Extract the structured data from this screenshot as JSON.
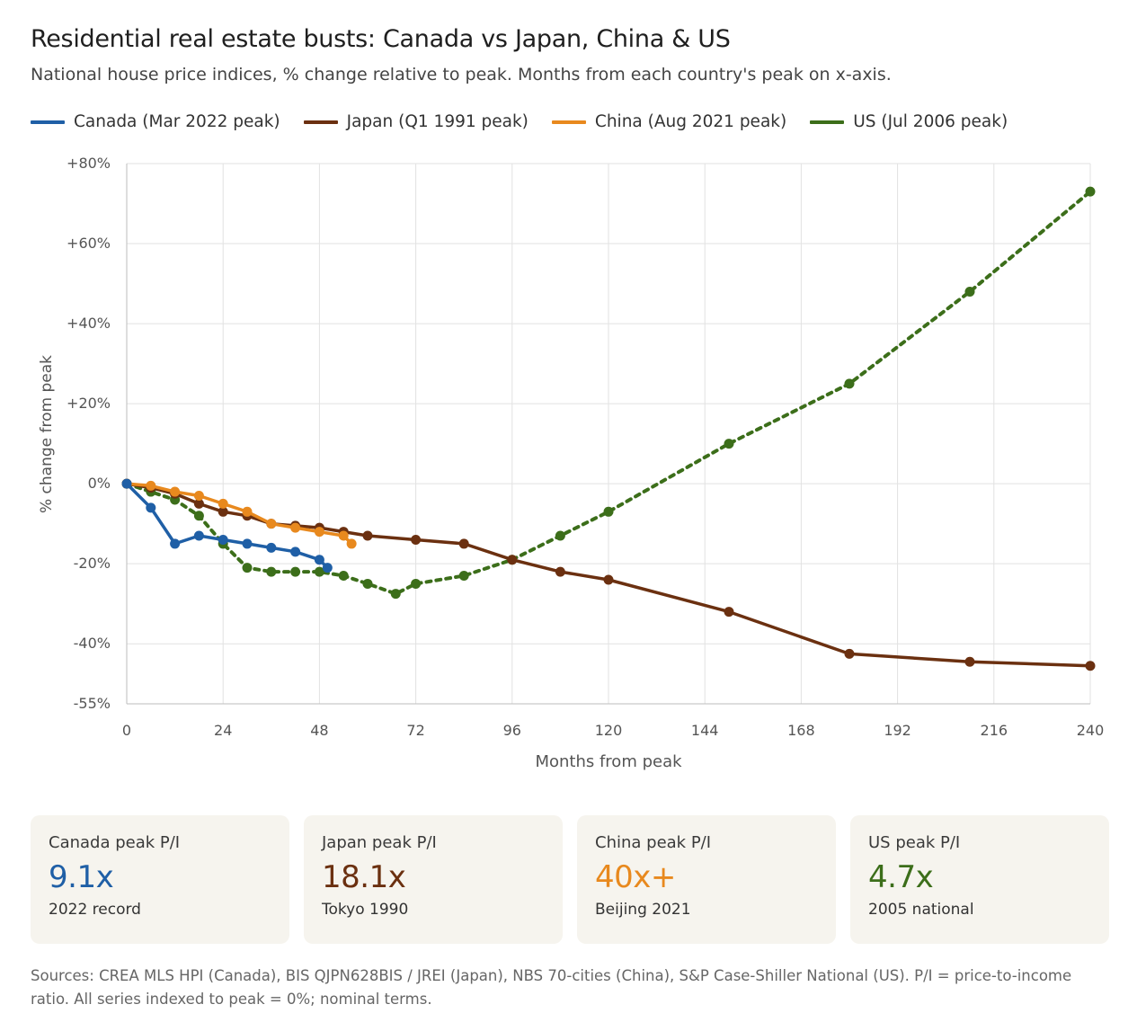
{
  "title": "Residential real estate busts: Canada vs Japan, China & US",
  "subtitle": "National house price indices, % change relative to peak. Months from each country's peak on x-axis.",
  "legend": [
    {
      "label": "Canada (Mar 2022 peak)",
      "color": "#1f5fa6"
    },
    {
      "label": "Japan (Q1 1991 peak)",
      "color": "#6b3010"
    },
    {
      "label": "China (Aug 2021 peak)",
      "color": "#e8891e"
    },
    {
      "label": "US (Jul 2006 peak)",
      "color": "#3c6e1a"
    }
  ],
  "chart_data": {
    "type": "line",
    "xlabel": "Months from peak",
    "ylabel": "% change from peak",
    "xlim": [
      0,
      240
    ],
    "ylim": [
      -55,
      80
    ],
    "xticks": [
      0,
      24,
      48,
      72,
      96,
      120,
      144,
      168,
      192,
      216,
      240
    ],
    "xtick_labels": [
      "0",
      "24",
      "48",
      "72",
      "96",
      "120",
      "144",
      "168",
      "192",
      "216",
      "240"
    ],
    "yticks": [
      80,
      60,
      40,
      20,
      0,
      -20,
      -40,
      -55
    ],
    "ytick_labels": [
      "+80%",
      "+60%",
      "+40%",
      "+20%",
      "0%",
      "-20%",
      "-40%",
      "-55%"
    ],
    "grid": true,
    "legend_position": "top-left",
    "series": [
      {
        "name": "Canada (Mar 2022 peak)",
        "color": "#1f5fa6",
        "dashed": false,
        "x": [
          0,
          6,
          12,
          18,
          24,
          30,
          36,
          42,
          48,
          50
        ],
        "y": [
          0,
          -6,
          -15,
          -13,
          -14,
          -15,
          -16,
          -17,
          -19,
          -21
        ]
      },
      {
        "name": "Japan (Q1 1991 peak)",
        "color": "#6b3010",
        "dashed": false,
        "x": [
          0,
          6,
          12,
          18,
          24,
          30,
          36,
          42,
          48,
          54,
          60,
          72,
          84,
          96,
          108,
          120,
          150,
          180,
          210,
          240
        ],
        "y": [
          0,
          -1,
          -2.5,
          -5,
          -7,
          -8,
          -10,
          -10.5,
          -11,
          -12,
          -13,
          -14,
          -15,
          -19,
          -22,
          -24,
          -32,
          -42.5,
          -44.5,
          -45.5
        ]
      },
      {
        "name": "China (Aug 2021 peak)",
        "color": "#e8891e",
        "dashed": false,
        "x": [
          0,
          6,
          12,
          18,
          24,
          30,
          36,
          42,
          48,
          54,
          56
        ],
        "y": [
          0,
          -0.5,
          -2,
          -3,
          -5,
          -7,
          -10,
          -11,
          -12,
          -13,
          -15
        ]
      },
      {
        "name": "US (Jul 2006 peak)",
        "color": "#3c6e1a",
        "dashed": true,
        "x": [
          0,
          6,
          12,
          18,
          24,
          30,
          36,
          42,
          48,
          54,
          60,
          67,
          72,
          84,
          96,
          108,
          120,
          150,
          180,
          210,
          240
        ],
        "y": [
          0,
          -2,
          -4,
          -8,
          -15,
          -21,
          -22,
          -22,
          -22,
          -23,
          -25,
          -27.5,
          -25,
          -23,
          -19,
          -13,
          -7,
          10,
          25,
          48,
          73
        ]
      }
    ]
  },
  "cards": [
    {
      "label": "Canada peak P/I",
      "value": "9.1x",
      "note": "2022 record",
      "color": "#1f5fa6"
    },
    {
      "label": "Japan peak P/I",
      "value": "18.1x",
      "note": "Tokyo 1990",
      "color": "#6b3010"
    },
    {
      "label": "China peak P/I",
      "value": "40x+",
      "note": "Beijing 2021",
      "color": "#e8891e"
    },
    {
      "label": "US peak P/I",
      "value": "4.7x",
      "note": "2005 national",
      "color": "#3c6e1a"
    }
  ],
  "footer": "Sources: CREA MLS HPI (Canada), BIS QJPN628BIS / JREI (Japan), NBS 70-cities (China), S&P Case-Shiller National (US). P/I = price-to-income ratio. All series indexed to peak = 0%; nominal terms."
}
